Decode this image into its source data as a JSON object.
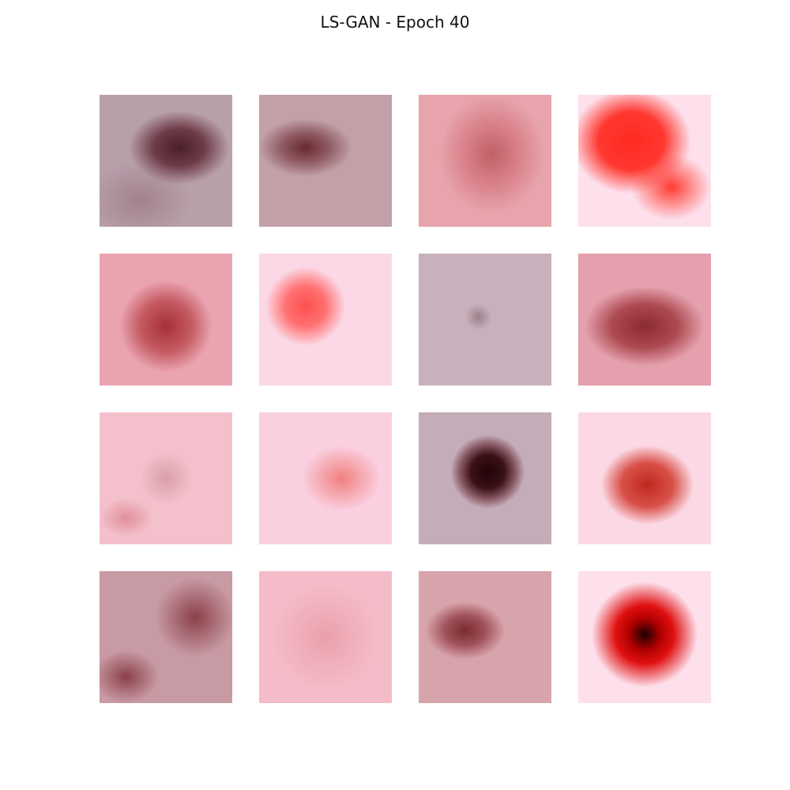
{
  "title": "LS-GAN - Epoch 40"
}
